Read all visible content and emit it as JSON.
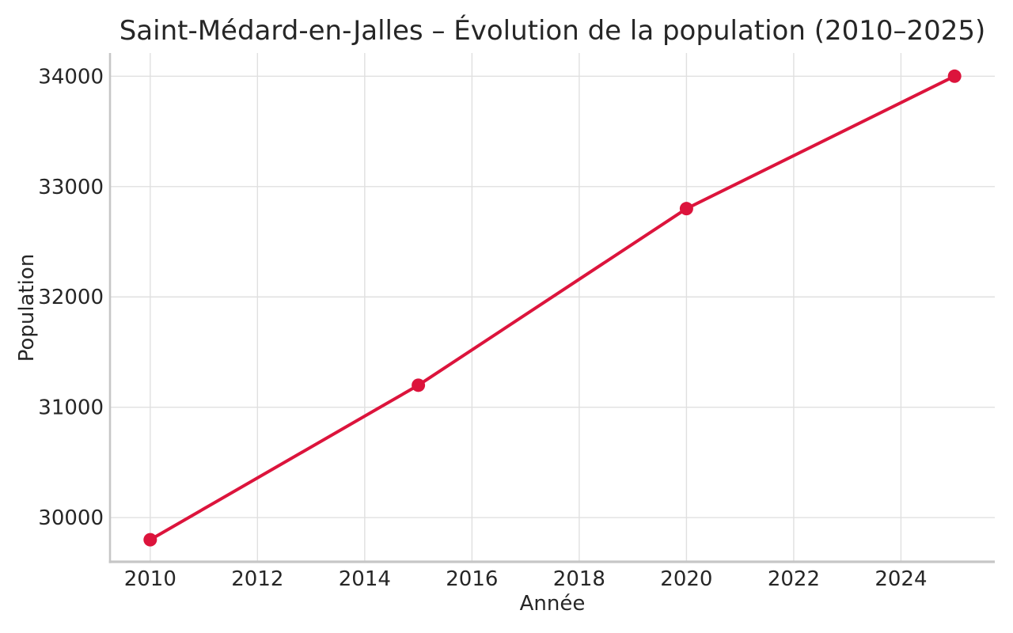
{
  "chart_data": {
    "type": "line",
    "title": "Saint-Médard-en-Jalles – Évolution de la population (2010–2025)",
    "xlabel": "Année",
    "ylabel": "Population",
    "series": [
      {
        "name": "Population",
        "x": [
          2010,
          2015,
          2020,
          2025
        ],
        "values": [
          29800,
          31200,
          32800,
          34000
        ]
      }
    ],
    "xticks": [
      2010,
      2012,
      2014,
      2016,
      2018,
      2020,
      2022,
      2024
    ],
    "yticks": [
      30000,
      31000,
      32000,
      33000,
      34000
    ],
    "xlim": [
      2009.25,
      2025.75
    ],
    "ylim": [
      29600,
      34210
    ],
    "grid": true,
    "legend_position": "none",
    "colors": {
      "line": "#DC143C",
      "marker": "#DC143C",
      "grid": "#e0e0e0",
      "spine": "#c6c6c6",
      "text": "#262626",
      "background": "#ffffff"
    }
  }
}
